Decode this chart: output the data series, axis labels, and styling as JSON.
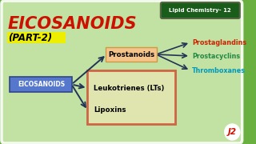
{
  "bg_color": "#6ab040",
  "inner_bg": "#cde8b0",
  "title": "EICOSANOIDS",
  "subtitle": "(PART-2)",
  "title_color": "#cc1100",
  "subtitle_color": "#000000",
  "subtitle_bg": "#eeee00",
  "header_text": "Lipid Chemistry- 12",
  "header_bg": "#1a5c1a",
  "header_text_color": "#ffffff",
  "eicosanoids_box_color": "#5577cc",
  "eicosanoids_text_color": "#ffffff",
  "prostanoids_box_color": "#f5c48a",
  "prostanoids_text_color": "#000000",
  "leukotrienes_text_color": "#000000",
  "lipoxins_text_color": "#000000",
  "leukolipo_box_border": "#cc1100",
  "leukolipo_box_fill": "#f5e8b8",
  "prostaglandins_color": "#cc2200",
  "prostacyclins_color": "#228844",
  "thromboxanes_color": "#0099bb",
  "arrow_color": "#223355",
  "logo_text": "J2",
  "logo_text_color": "#cc1100",
  "logo_bg": "#ffffff"
}
